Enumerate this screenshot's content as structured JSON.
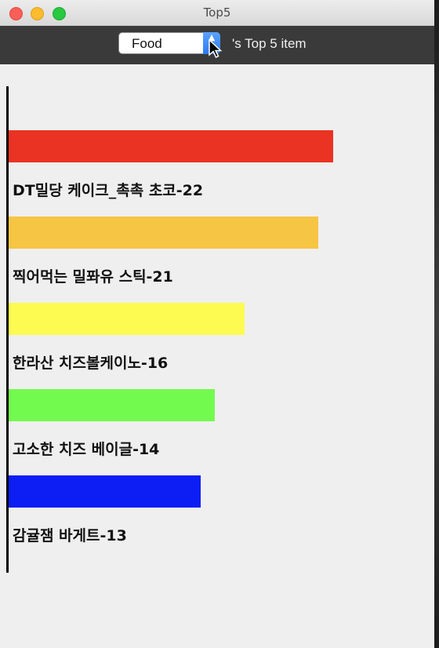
{
  "window": {
    "title": "Top5"
  },
  "toolbar": {
    "category_select": {
      "value": "Food"
    },
    "suffix": "'s Top 5 item"
  },
  "colors": {
    "bar_colors": [
      "#ea3323",
      "#f7c544",
      "#fdfb51",
      "#73fa4f",
      "#0d1ef5"
    ]
  },
  "items": [
    {
      "label": "DT밀당 케이크_촉촉 초코-22",
      "count": 22
    },
    {
      "label": "찍어먹는 밀퐈유 스틱-21",
      "count": 21
    },
    {
      "label": "한라산 치즈볼케이노-16",
      "count": 16
    },
    {
      "label": "고소한 치즈 베이글-14",
      "count": 14
    },
    {
      "label": "감귤잼 바게트-13",
      "count": 13
    }
  ]
}
